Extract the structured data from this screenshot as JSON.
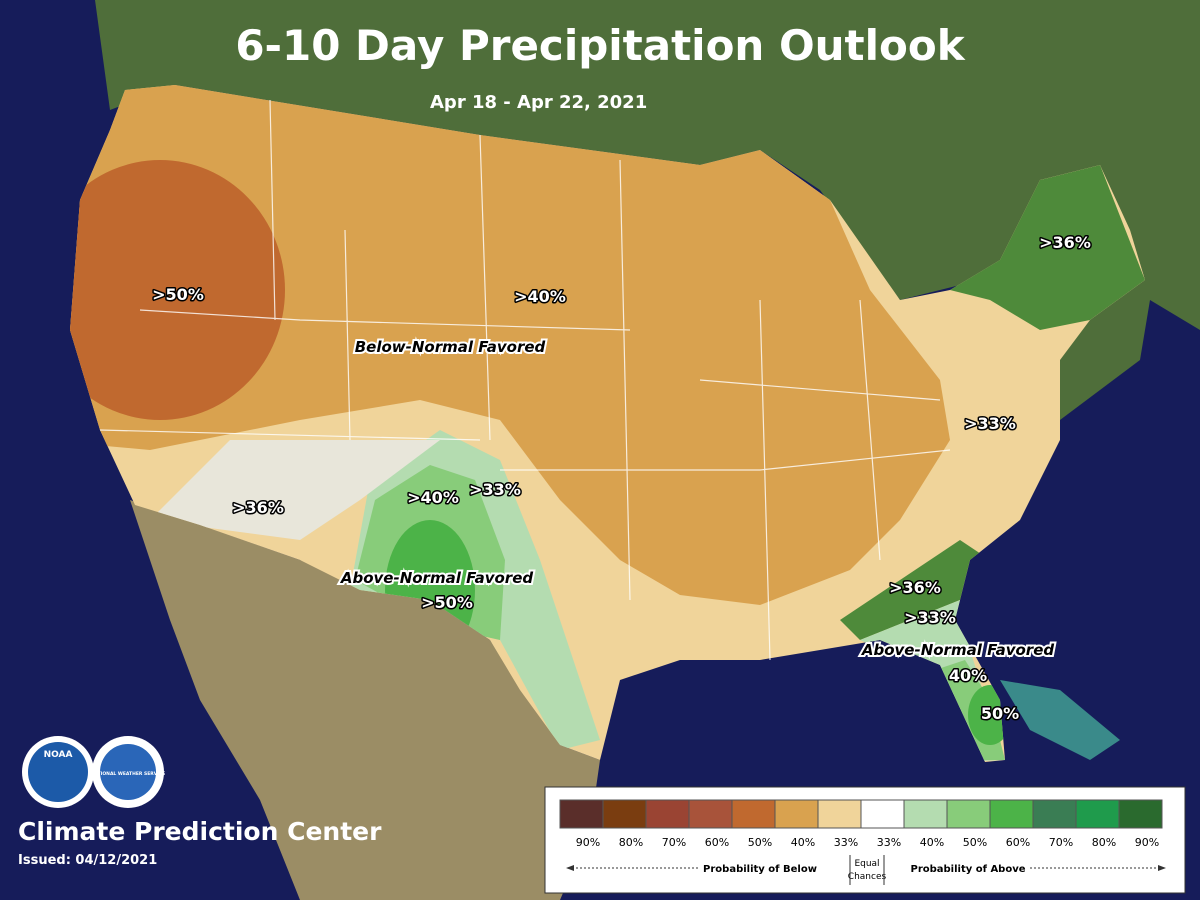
{
  "header": {
    "title": "6-10 Day Precipitation Outlook",
    "subtitle": "Apr 18 - Apr 22, 2021"
  },
  "map": {
    "labels": [
      ">50%",
      ">40%",
      "Below-Normal Favored",
      ">36%",
      ">33%",
      ">36%",
      ">40%",
      ">33%",
      "Above-Normal Favored",
      ">50%",
      ">36%",
      ">33%",
      "Above-Normal Favored",
      "40%",
      "50%"
    ]
  },
  "legend": {
    "items": [
      {
        "label": "90%",
        "color": "#5a2e2a"
      },
      {
        "label": "80%",
        "color": "#7a3d10"
      },
      {
        "label": "70%",
        "color": "#9a4433"
      },
      {
        "label": "60%",
        "color": "#a8533a"
      },
      {
        "label": "50%",
        "color": "#c0692f"
      },
      {
        "label": "40%",
        "color": "#d9a24f"
      },
      {
        "label": "33%",
        "color": "#f0d49a"
      },
      {
        "label": "33%",
        "color": "#ffffff"
      },
      {
        "label": "40%",
        "color": "#b4dcb0"
      },
      {
        "label": "50%",
        "color": "#88cc7a"
      },
      {
        "label": "60%",
        "color": "#4cb348"
      },
      {
        "label": "70%",
        "color": "#3a7d54"
      },
      {
        "label": "80%",
        "color": "#1f9b4c"
      },
      {
        "label": "90%",
        "color": "#2a6a2e"
      }
    ],
    "below": "Probability of Below",
    "equal": [
      "Equal",
      "Chances"
    ],
    "above": "Probability of Above"
  },
  "footer": {
    "center": "Climate Prediction Center",
    "issued": "Issued: 04/12/2021"
  },
  "logos": [
    "NOAA",
    "NATIONAL WEATHER SERVICE"
  ]
}
